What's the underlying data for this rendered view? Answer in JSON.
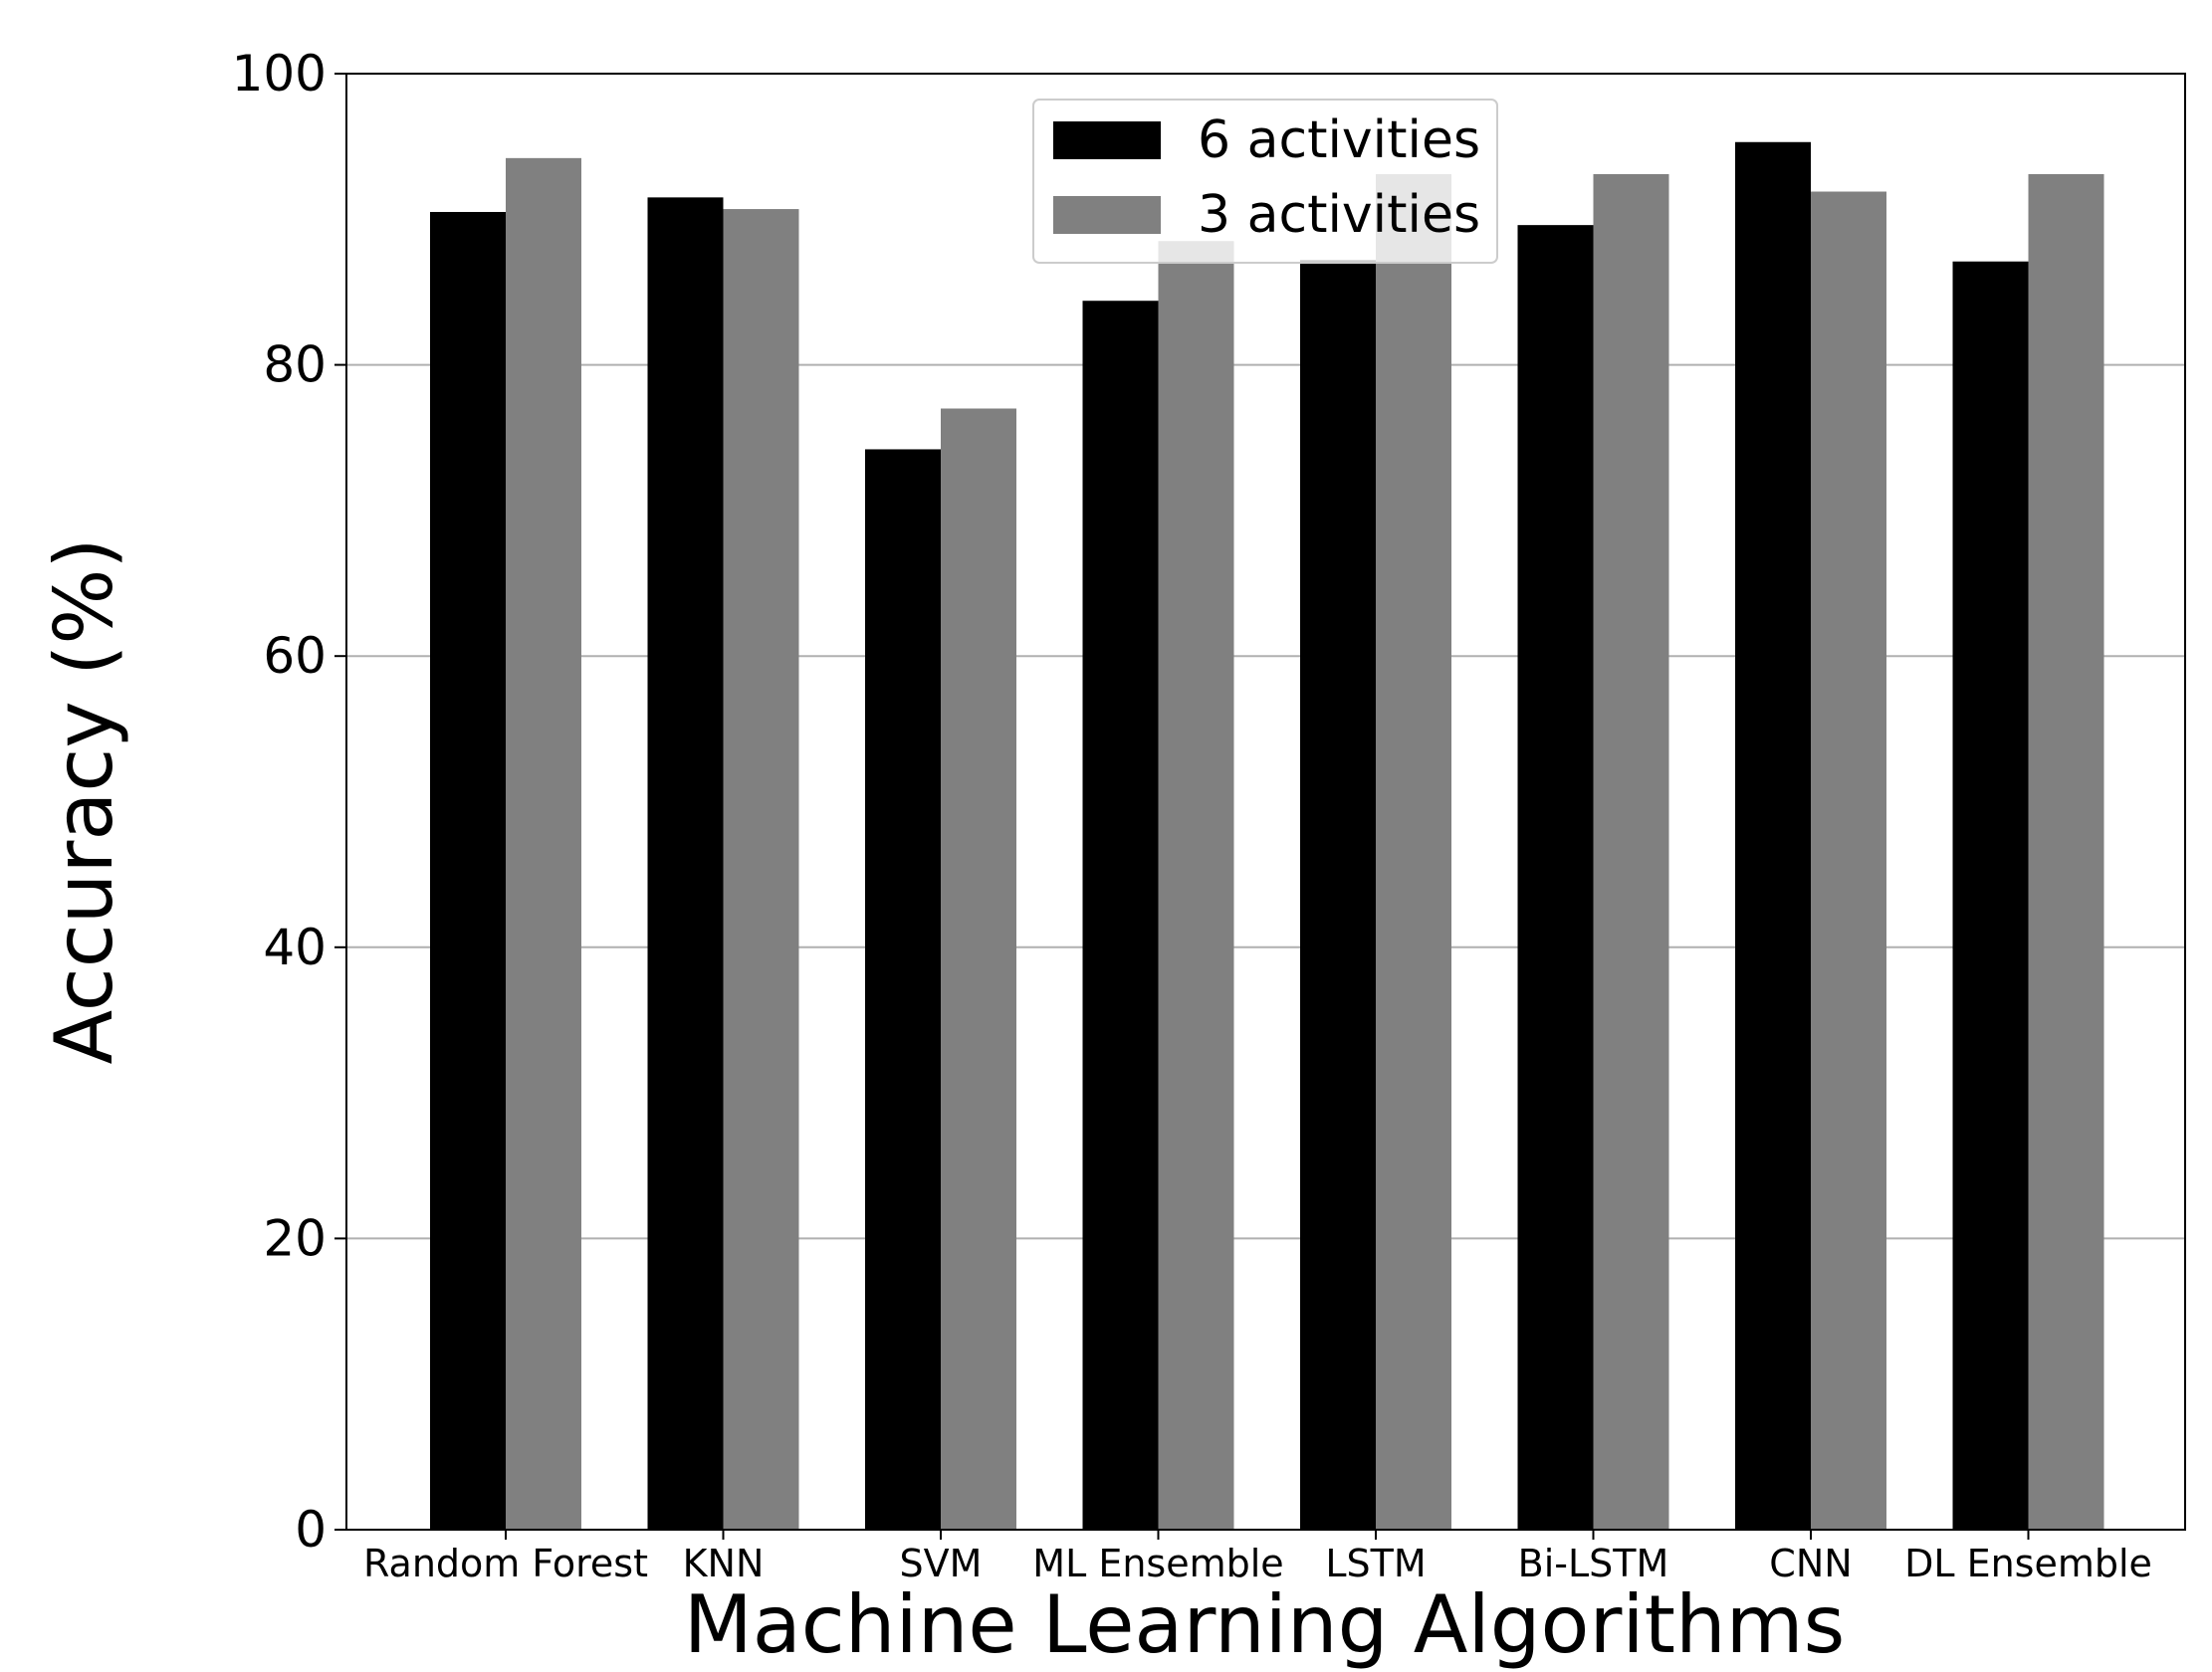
{
  "chart_data": {
    "type": "bar",
    "title": "",
    "xlabel": "Machine Learning Algorithms",
    "ylabel": "Accuracy (%)",
    "ylim": [
      0,
      100
    ],
    "yticks": [
      0,
      20,
      40,
      60,
      80,
      100
    ],
    "ytick_labels": [
      "0",
      "20",
      "40",
      "60",
      "80",
      "100"
    ],
    "grid": "horizontal",
    "legend_position": "top-center",
    "categories": [
      "Random Forest",
      "KNN",
      "SVM",
      "ML Ensemble",
      "LSTM",
      "Bi-LSTM",
      "CNN",
      "DL Ensemble"
    ],
    "series": [
      {
        "name": "6 activities",
        "color": "#000000",
        "values": [
          90.5,
          91.5,
          74.2,
          84.4,
          87.2,
          89.6,
          95.3,
          87.1
        ]
      },
      {
        "name": "3 activities",
        "color": "#808080",
        "values": [
          94.2,
          90.7,
          77.0,
          88.5,
          93.1,
          93.1,
          91.9,
          93.1
        ]
      }
    ]
  }
}
